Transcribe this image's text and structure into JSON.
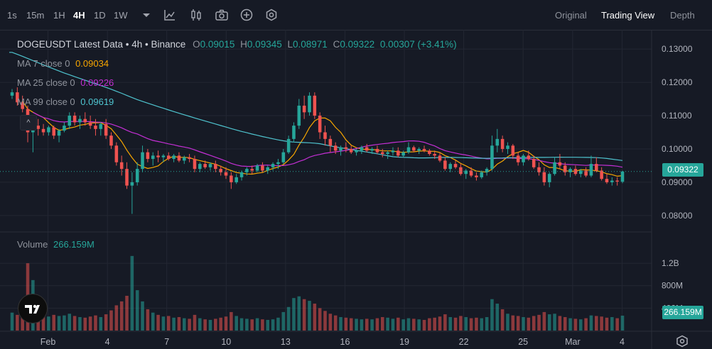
{
  "toolbar": {
    "timeframes": [
      {
        "label": "1s",
        "active": false
      },
      {
        "label": "15m",
        "active": false
      },
      {
        "label": "1H",
        "active": false
      },
      {
        "label": "4H",
        "active": true
      },
      {
        "label": "1D",
        "active": false
      },
      {
        "label": "1W",
        "active": false
      }
    ],
    "tools": [
      "dropdown-caret-icon",
      "indicator-chart-icon",
      "candle-settings-icon",
      "camera-icon",
      "plus-circle-icon",
      "settings-hex-icon"
    ],
    "views": [
      {
        "label": "Original",
        "active": false
      },
      {
        "label": "Trading View",
        "active": true
      },
      {
        "label": "Depth",
        "active": false
      }
    ]
  },
  "legend": {
    "title": "DOGEUSDT Latest Data • 4h • Binance",
    "o_label": "O",
    "o": "0.09015",
    "h_label": "H",
    "h": "0.09345",
    "l_label": "L",
    "l": "0.08971",
    "c_label": "C",
    "c": "0.09322",
    "change": "0.00307 (+3.41%)",
    "ma7_label": "MA 7 close 0",
    "ma7": "0.09034",
    "ma25_label": "MA 25 close 0",
    "ma25": "0.09226",
    "ma99_label": "MA 99 close 0",
    "ma99": "0.09619",
    "volume_label": "Volume",
    "volume": "266.159M"
  },
  "price_tag": "0.09322",
  "volume_tag": "266.159M",
  "collapse_symbol": "^",
  "colors": {
    "up": "#26a69a",
    "down": "#ef5350",
    "ma7": "#f7a600",
    "ma25": "#c42fd5",
    "ma99": "#4fc4cf",
    "background": "#161a25",
    "grid": "#232733"
  },
  "chart_data": {
    "type": "candlestick",
    "price_axis": {
      "ticks": [
        "0.13000",
        "0.12000",
        "0.11000",
        "0.10000",
        "0.09000",
        "0.08000"
      ],
      "range": [
        0.0755,
        0.1345
      ]
    },
    "volume_axis": {
      "ticks": [
        "1.2B",
        "800M",
        "400M"
      ],
      "range_millions": [
        0,
        1720
      ]
    },
    "x_labels": [
      "Feb",
      "4",
      "7",
      "10",
      "13",
      "16",
      "19",
      "22",
      "25",
      "Mar",
      "4"
    ],
    "ma_labels": [
      "MA 7",
      "MA 25",
      "MA 99"
    ],
    "ma99_start": 0.129,
    "ma99_end": 0.0962,
    "candles": [
      [
        0.116,
        0.118,
        0.115,
        0.117,
        320
      ],
      [
        0.117,
        0.1185,
        0.113,
        0.114,
        280
      ],
      [
        0.114,
        0.116,
        0.111,
        0.112,
        300
      ],
      [
        0.112,
        0.113,
        0.102,
        0.105,
        1200
      ],
      [
        0.105,
        0.109,
        0.099,
        0.107,
        900
      ],
      [
        0.107,
        0.109,
        0.104,
        0.106,
        350
      ],
      [
        0.106,
        0.1075,
        0.104,
        0.105,
        300
      ],
      [
        0.105,
        0.107,
        0.104,
        0.1065,
        250
      ],
      [
        0.1065,
        0.107,
        0.103,
        0.104,
        280
      ],
      [
        0.104,
        0.106,
        0.102,
        0.1055,
        260
      ],
      [
        0.1055,
        0.108,
        0.105,
        0.107,
        270
      ],
      [
        0.107,
        0.111,
        0.106,
        0.11,
        300
      ],
      [
        0.11,
        0.111,
        0.107,
        0.108,
        260
      ],
      [
        0.108,
        0.11,
        0.106,
        0.109,
        240
      ],
      [
        0.109,
        0.111,
        0.107,
        0.108,
        230
      ],
      [
        0.108,
        0.11,
        0.106,
        0.107,
        250
      ],
      [
        0.107,
        0.109,
        0.104,
        0.106,
        270
      ],
      [
        0.106,
        0.108,
        0.104,
        0.1075,
        240
      ],
      [
        0.1075,
        0.109,
        0.103,
        0.104,
        290
      ],
      [
        0.104,
        0.105,
        0.1,
        0.101,
        360
      ],
      [
        0.101,
        0.102,
        0.095,
        0.096,
        450
      ],
      [
        0.096,
        0.098,
        0.092,
        0.094,
        520
      ],
      [
        0.094,
        0.096,
        0.088,
        0.089,
        620
      ],
      [
        0.089,
        0.093,
        0.0805,
        0.09,
        1330
      ],
      [
        0.09,
        0.096,
        0.089,
        0.094,
        720
      ],
      [
        0.094,
        0.101,
        0.093,
        0.099,
        520
      ],
      [
        0.099,
        0.1,
        0.096,
        0.097,
        380
      ],
      [
        0.097,
        0.099,
        0.095,
        0.098,
        320
      ],
      [
        0.098,
        0.0995,
        0.096,
        0.0975,
        280
      ],
      [
        0.0975,
        0.0985,
        0.096,
        0.098,
        250
      ],
      [
        0.098,
        0.099,
        0.0965,
        0.097,
        260
      ],
      [
        0.097,
        0.0985,
        0.096,
        0.098,
        230
      ],
      [
        0.098,
        0.099,
        0.096,
        0.0965,
        240
      ],
      [
        0.0965,
        0.098,
        0.0955,
        0.0975,
        220
      ],
      [
        0.0975,
        0.0985,
        0.096,
        0.097,
        210
      ],
      [
        0.097,
        0.098,
        0.093,
        0.094,
        280
      ],
      [
        0.094,
        0.096,
        0.093,
        0.0955,
        220
      ],
      [
        0.0955,
        0.0965,
        0.094,
        0.0945,
        200
      ],
      [
        0.0945,
        0.096,
        0.0935,
        0.0955,
        190
      ],
      [
        0.0955,
        0.0965,
        0.093,
        0.094,
        210
      ],
      [
        0.094,
        0.095,
        0.092,
        0.093,
        230
      ],
      [
        0.093,
        0.0945,
        0.091,
        0.092,
        250
      ],
      [
        0.092,
        0.093,
        0.088,
        0.09,
        330
      ],
      [
        0.09,
        0.0925,
        0.0895,
        0.0915,
        260
      ],
      [
        0.0915,
        0.0935,
        0.0905,
        0.093,
        220
      ],
      [
        0.093,
        0.0945,
        0.092,
        0.094,
        210
      ],
      [
        0.094,
        0.095,
        0.0925,
        0.0935,
        200
      ],
      [
        0.0935,
        0.0955,
        0.093,
        0.095,
        220
      ],
      [
        0.095,
        0.096,
        0.093,
        0.0935,
        200
      ],
      [
        0.0935,
        0.095,
        0.0925,
        0.0945,
        190
      ],
      [
        0.0945,
        0.096,
        0.0935,
        0.0955,
        200
      ],
      [
        0.0955,
        0.097,
        0.094,
        0.096,
        230
      ],
      [
        0.096,
        0.1,
        0.0955,
        0.099,
        330
      ],
      [
        0.099,
        0.104,
        0.0985,
        0.103,
        420
      ],
      [
        0.103,
        0.108,
        0.102,
        0.107,
        580
      ],
      [
        0.107,
        0.115,
        0.106,
        0.113,
        610
      ],
      [
        0.113,
        0.116,
        0.109,
        0.111,
        560
      ],
      [
        0.111,
        0.117,
        0.11,
        0.116,
        530
      ],
      [
        0.116,
        0.117,
        0.109,
        0.11,
        480
      ],
      [
        0.11,
        0.111,
        0.103,
        0.105,
        400
      ],
      [
        0.105,
        0.107,
        0.101,
        0.103,
        350
      ],
      [
        0.103,
        0.104,
        0.099,
        0.101,
        300
      ],
      [
        0.101,
        0.102,
        0.0985,
        0.0995,
        270
      ],
      [
        0.0995,
        0.101,
        0.098,
        0.1005,
        240
      ],
      [
        0.1005,
        0.102,
        0.099,
        0.1,
        230
      ],
      [
        0.1,
        0.101,
        0.0985,
        0.099,
        220
      ],
      [
        0.099,
        0.1,
        0.098,
        0.0995,
        210
      ],
      [
        0.0995,
        0.101,
        0.0985,
        0.1005,
        200
      ],
      [
        0.1005,
        0.1015,
        0.099,
        0.0995,
        210
      ],
      [
        0.0995,
        0.1005,
        0.0985,
        0.1,
        200
      ],
      [
        0.1,
        0.101,
        0.0985,
        0.099,
        220
      ],
      [
        0.099,
        0.1,
        0.0975,
        0.0985,
        240
      ],
      [
        0.0985,
        0.0995,
        0.097,
        0.099,
        230
      ],
      [
        0.099,
        0.1005,
        0.098,
        0.0995,
        210
      ],
      [
        0.0995,
        0.1005,
        0.0975,
        0.098,
        230
      ],
      [
        0.098,
        0.0995,
        0.0975,
        0.099,
        200
      ],
      [
        0.099,
        0.102,
        0.0985,
        0.1005,
        220
      ],
      [
        0.1005,
        0.101,
        0.099,
        0.0995,
        210
      ],
      [
        0.0995,
        0.1005,
        0.0985,
        0.1,
        200
      ],
      [
        0.1,
        0.101,
        0.099,
        0.0995,
        190
      ],
      [
        0.0995,
        0.1,
        0.098,
        0.0985,
        220
      ],
      [
        0.0985,
        0.0995,
        0.097,
        0.098,
        230
      ],
      [
        0.098,
        0.099,
        0.096,
        0.0965,
        250
      ],
      [
        0.0965,
        0.0975,
        0.0935,
        0.094,
        290
      ],
      [
        0.094,
        0.096,
        0.093,
        0.0955,
        240
      ],
      [
        0.0955,
        0.0965,
        0.094,
        0.0945,
        230
      ],
      [
        0.0945,
        0.0955,
        0.092,
        0.0925,
        260
      ],
      [
        0.0925,
        0.094,
        0.091,
        0.0935,
        240
      ],
      [
        0.0935,
        0.0945,
        0.0915,
        0.092,
        220
      ],
      [
        0.092,
        0.093,
        0.0905,
        0.0915,
        230
      ],
      [
        0.0915,
        0.0935,
        0.091,
        0.093,
        220
      ],
      [
        0.093,
        0.0945,
        0.092,
        0.094,
        240
      ],
      [
        0.094,
        0.104,
        0.0935,
        0.101,
        560
      ],
      [
        0.101,
        0.106,
        0.099,
        0.103,
        480
      ],
      [
        0.103,
        0.104,
        0.099,
        0.1,
        380
      ],
      [
        0.1,
        0.102,
        0.0985,
        0.101,
        300
      ],
      [
        0.101,
        0.1015,
        0.097,
        0.098,
        270
      ],
      [
        0.098,
        0.099,
        0.095,
        0.096,
        260
      ],
      [
        0.096,
        0.0985,
        0.095,
        0.098,
        240
      ],
      [
        0.098,
        0.0995,
        0.0965,
        0.097,
        230
      ],
      [
        0.097,
        0.098,
        0.094,
        0.0945,
        260
      ],
      [
        0.0945,
        0.096,
        0.092,
        0.093,
        280
      ],
      [
        0.093,
        0.0945,
        0.089,
        0.09,
        330
      ],
      [
        0.09,
        0.093,
        0.0885,
        0.0925,
        290
      ],
      [
        0.0925,
        0.0975,
        0.092,
        0.096,
        300
      ],
      [
        0.096,
        0.0985,
        0.094,
        0.095,
        260
      ],
      [
        0.095,
        0.096,
        0.092,
        0.093,
        240
      ],
      [
        0.093,
        0.0945,
        0.0915,
        0.094,
        220
      ],
      [
        0.094,
        0.095,
        0.092,
        0.0925,
        210
      ],
      [
        0.0925,
        0.094,
        0.0915,
        0.0935,
        200
      ],
      [
        0.0935,
        0.0945,
        0.0915,
        0.092,
        220
      ],
      [
        0.092,
        0.098,
        0.0915,
        0.0955,
        270
      ],
      [
        0.0955,
        0.0975,
        0.093,
        0.0935,
        260
      ],
      [
        0.0935,
        0.0945,
        0.0905,
        0.091,
        250
      ],
      [
        0.091,
        0.0925,
        0.0895,
        0.09,
        230
      ],
      [
        0.09,
        0.0915,
        0.089,
        0.0905,
        240
      ],
      [
        0.0905,
        0.0915,
        0.089,
        0.0902,
        220
      ],
      [
        0.09015,
        0.09345,
        0.08971,
        0.09322,
        266
      ]
    ]
  }
}
